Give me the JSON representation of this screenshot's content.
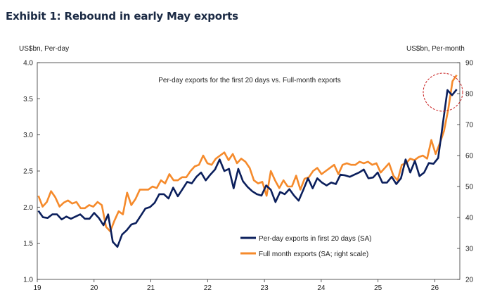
{
  "title": "Exhibit 1: Rebound in early May exports",
  "chart_data": {
    "type": "line",
    "title": "Per-day exports for the first 20 days vs. Full-month exports",
    "y_left_label": "US$bn, Per-day",
    "y_right_label": "US$bn, Per-month",
    "y_left_range": [
      1.0,
      4.0
    ],
    "y_left_ticks": [
      "1.0",
      "1.5",
      "2.0",
      "2.5",
      "3.0",
      "3.5",
      "4.0"
    ],
    "y_right_range": [
      20,
      90
    ],
    "y_right_ticks": [
      "20",
      "30",
      "40",
      "50",
      "60",
      "70",
      "80",
      "90"
    ],
    "x_range": [
      2019.0,
      2026.44
    ],
    "x_ticks": [
      "19",
      "20",
      "21",
      "22",
      "23",
      "24",
      "25",
      "26"
    ],
    "legend_placement": "bottom-right",
    "grid": false,
    "highlight": "dashed red circle around latest observations",
    "series": [
      {
        "name": "Per-day exports in first 20 days (SA)",
        "axis": "left",
        "color": "#0b1f5c",
        "values": [
          1.95,
          1.86,
          1.85,
          1.9,
          1.9,
          1.83,
          1.87,
          1.84,
          1.87,
          1.9,
          1.84,
          1.84,
          1.92,
          1.85,
          1.75,
          1.9,
          1.52,
          1.45,
          1.62,
          1.68,
          1.76,
          1.78,
          1.88,
          1.98,
          2.0,
          2.06,
          2.18,
          2.18,
          2.12,
          2.27,
          2.15,
          2.25,
          2.35,
          2.33,
          2.42,
          2.48,
          2.37,
          2.45,
          2.52,
          2.66,
          2.5,
          2.53,
          2.26,
          2.53,
          2.36,
          2.28,
          2.22,
          2.18,
          2.16,
          2.3,
          2.24,
          2.07,
          2.21,
          2.18,
          2.25,
          2.16,
          2.09,
          2.24,
          2.4,
          2.26,
          2.4,
          2.34,
          2.3,
          2.34,
          2.32,
          2.45,
          2.44,
          2.42,
          2.45,
          2.48,
          2.52,
          2.4,
          2.41,
          2.48,
          2.34,
          2.34,
          2.42,
          2.32,
          2.4,
          2.66,
          2.48,
          2.64,
          2.43,
          2.48,
          2.61,
          2.6,
          2.68,
          3.15,
          3.62,
          3.55,
          3.63
        ]
      },
      {
        "name": "Full month exports (SA; right scale)",
        "axis": "right",
        "color": "#f58a2b",
        "values": [
          47.0,
          43.5,
          45.0,
          48.5,
          46.5,
          43.5,
          44.8,
          45.5,
          44.5,
          45.0,
          43.0,
          43.0,
          44.0,
          43.5,
          45.0,
          44.0,
          37.0,
          35.5,
          39.0,
          42.0,
          41.0,
          48.0,
          44.0,
          46.0,
          49.0,
          49.0,
          49.0,
          50.0,
          49.5,
          52.0,
          51.0,
          54.0,
          52.0,
          52.0,
          53.0,
          53.0,
          55.0,
          56.5,
          57.0,
          60.0,
          57.5,
          57.0,
          59.0,
          60.0,
          61.0,
          58.5,
          60.5,
          57.5,
          59.0,
          58.0,
          56.0,
          52.0,
          51.0,
          51.5,
          47.0,
          55.0,
          52.0,
          49.5,
          52.0,
          50.0,
          50.0,
          53.5,
          49.0,
          52.5,
          53.0,
          55.0,
          56.0,
          54.0,
          55.0,
          56.0,
          57.0,
          54.0,
          57.0,
          57.5,
          57.0,
          57.0,
          58.0,
          57.5,
          58.0,
          57.0,
          57.5,
          54.5,
          56.0,
          57.5,
          53.5,
          52.0,
          57.0,
          57.5,
          59.0,
          58.5,
          59.5,
          60.0,
          59.0,
          65.0,
          60.5,
          64.0,
          68.0,
          75.0,
          84.0,
          86.0
        ]
      }
    ]
  }
}
